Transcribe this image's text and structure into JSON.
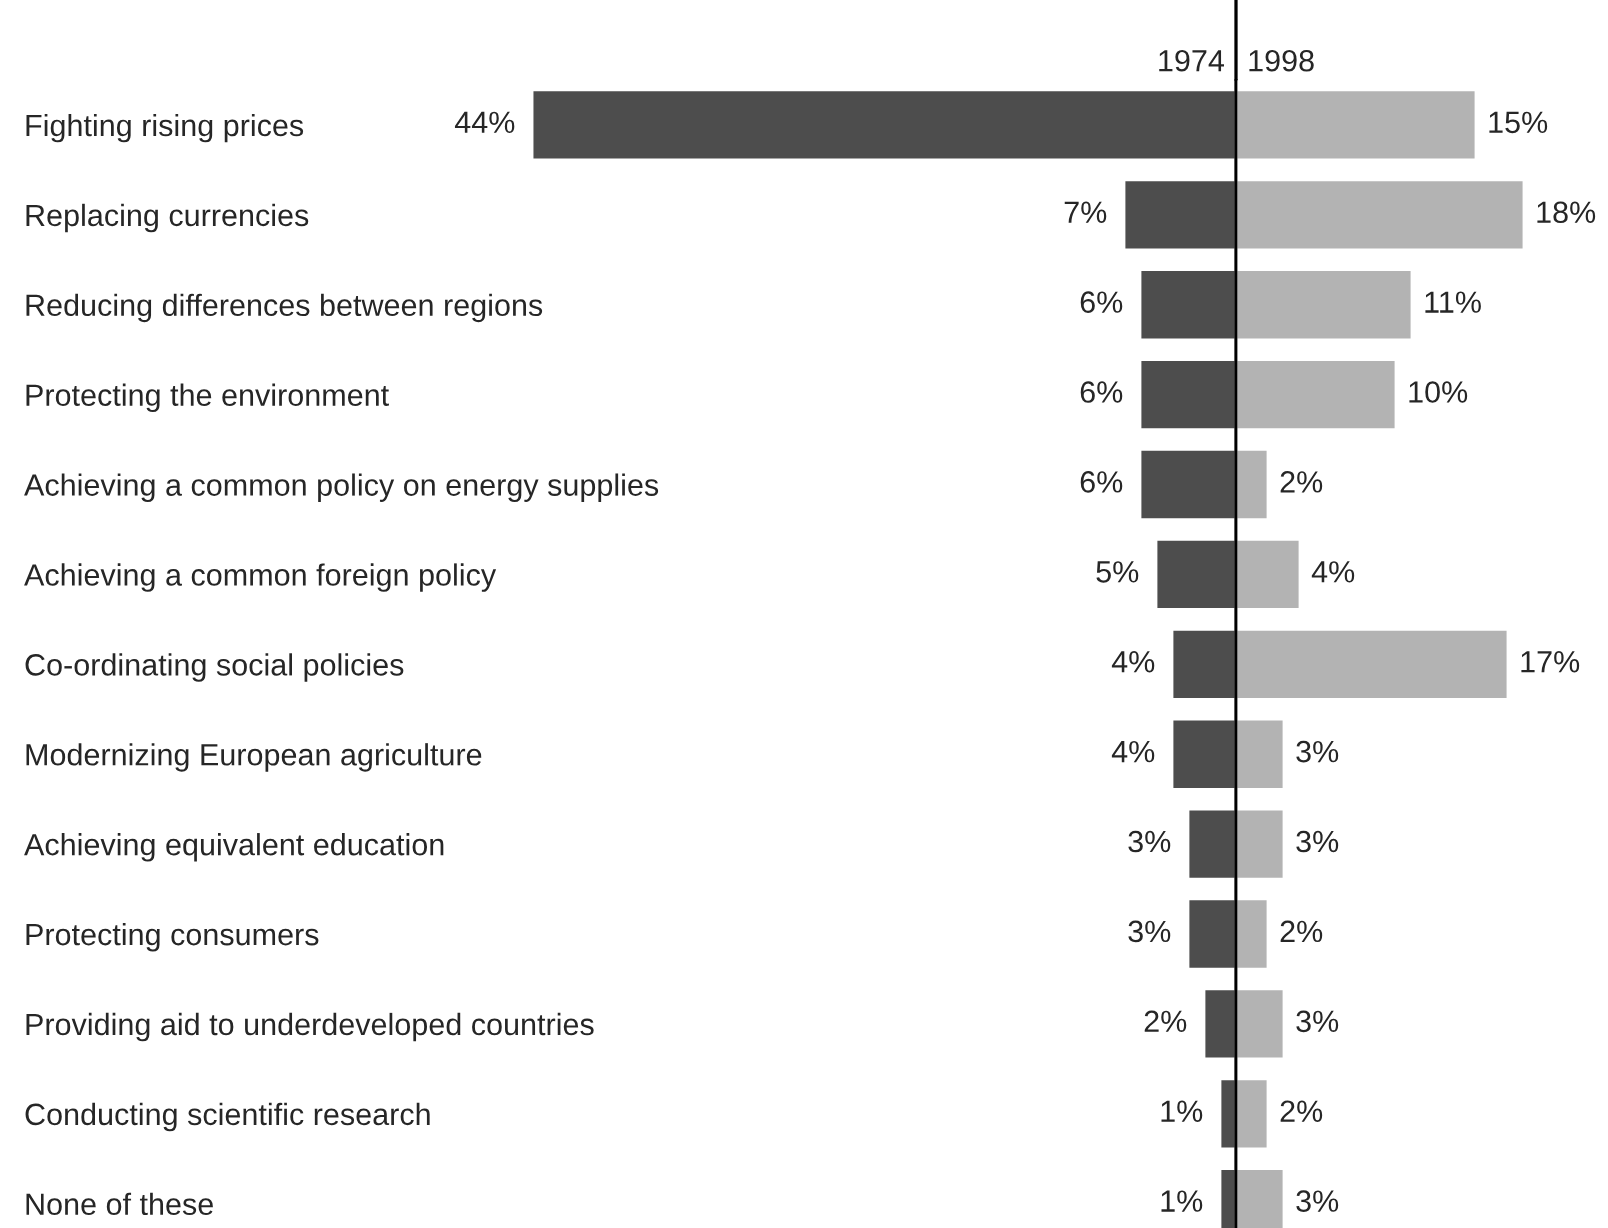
{
  "chart_data": [
    {
      "type": "bar",
      "orientation": "horizontal",
      "categories": [
        "Fighting rising prices",
        "Replacing currencies",
        "Reducing differences between regions",
        "Protecting the environment",
        "Achieving a common policy on energy supplies",
        "Achieving a common foreign policy",
        "Co-ordinating social policies",
        "Modernizing European agriculture",
        "Achieving equivalent education",
        "Protecting consumers",
        "Providing aid to underdeveloped countries",
        "Conducting scientific research",
        "None of these"
      ],
      "series": [
        {
          "name": "1974",
          "color": "#4d4d4d",
          "values": [
            44,
            7,
            6,
            6,
            6,
            5,
            4,
            4,
            3,
            3,
            2,
            1,
            1
          ],
          "value_labels": [
            "44%",
            "7%",
            "6%",
            "6%",
            "6%",
            "5%",
            "4%",
            "4%",
            "3%",
            "3%",
            "2%",
            "1%",
            "1%"
          ]
        }
      ],
      "tick_labels": "y",
      "legend": false,
      "grid": false
    },
    {
      "type": "bar",
      "orientation": "horizontal",
      "categories": [
        null,
        null,
        null,
        null,
        null,
        null,
        null,
        null,
        null,
        null,
        null,
        null,
        null
      ],
      "series": [
        {
          "name": "1998",
          "color": "#b3b3b3",
          "values": [
            15,
            18,
            11,
            10,
            2,
            4,
            17,
            3,
            3,
            2,
            3,
            2,
            3
          ],
          "value_labels": [
            "15%",
            "18%",
            "11%",
            "10%",
            "2%",
            "4%",
            "17%",
            "3%",
            "3%",
            "2%",
            "3%",
            "2%",
            "3%"
          ]
        }
      ],
      "tick_labels": false,
      "legend": false,
      "grid": false
    }
  ]
}
